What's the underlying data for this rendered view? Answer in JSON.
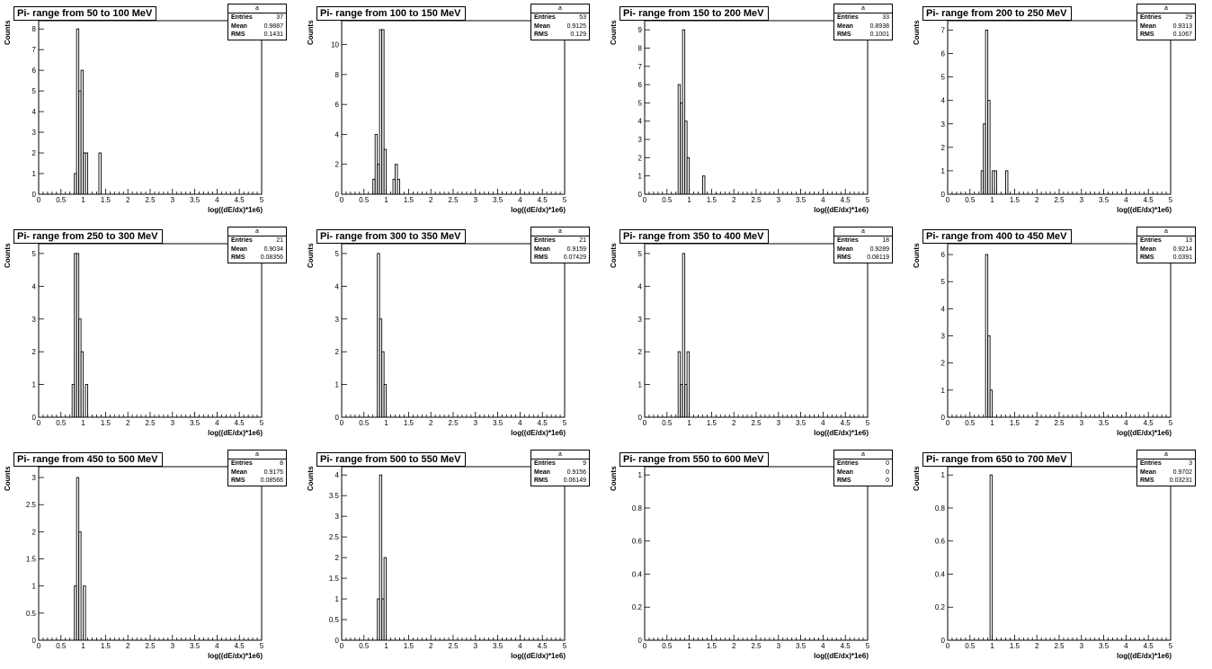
{
  "common": {
    "xlabel": "log((dE/dx)*1e6)",
    "ylabel": "Counts",
    "stats_name": "a",
    "stats_labels": [
      "Entries",
      "Mean",
      "RMS"
    ]
  },
  "chart_data": [
    {
      "type": "bar",
      "title": "Pi- range from 50 to 100 MeV",
      "xlim": [
        0,
        5
      ],
      "ylim": [
        0,
        8.4
      ],
      "yticks": [
        0,
        1,
        2,
        3,
        4,
        5,
        6,
        7,
        8
      ],
      "bin_width": 0.05,
      "bins": [
        [
          0.8,
          1
        ],
        [
          0.85,
          8
        ],
        [
          0.9,
          5
        ],
        [
          0.95,
          6
        ],
        [
          1.0,
          2
        ],
        [
          1.05,
          2
        ],
        [
          1.35,
          2
        ]
      ],
      "stats": {
        "entries": "37",
        "mean": "0.9887",
        "rms": "0.1431"
      }
    },
    {
      "type": "bar",
      "title": "Pi- range from 100 to 150 MeV",
      "xlim": [
        0,
        5
      ],
      "ylim": [
        0,
        11.6
      ],
      "yticks": [
        0,
        2,
        4,
        6,
        8,
        10
      ],
      "bin_width": 0.05,
      "bins": [
        [
          0.7,
          1
        ],
        [
          0.75,
          4
        ],
        [
          0.8,
          2
        ],
        [
          0.85,
          11
        ],
        [
          0.9,
          11
        ],
        [
          0.95,
          3
        ],
        [
          1.15,
          1
        ],
        [
          1.2,
          2
        ],
        [
          1.25,
          1
        ]
      ],
      "stats": {
        "entries": "53",
        "mean": "0.9125",
        "rms": "0.129"
      }
    },
    {
      "type": "bar",
      "title": "Pi- range from 150 to 200 MeV",
      "xlim": [
        0,
        5
      ],
      "ylim": [
        0,
        9.5
      ],
      "yticks": [
        0,
        1,
        2,
        3,
        4,
        5,
        6,
        7,
        8,
        9
      ],
      "bin_width": 0.05,
      "bins": [
        [
          0.75,
          6
        ],
        [
          0.8,
          5
        ],
        [
          0.85,
          9
        ],
        [
          0.9,
          4
        ],
        [
          0.95,
          2
        ],
        [
          1.3,
          1
        ]
      ],
      "stats": {
        "entries": "33",
        "mean": "0.8938",
        "rms": "0.1001"
      }
    },
    {
      "type": "bar",
      "title": "Pi- range from 200 to 250 MeV",
      "xlim": [
        0,
        5
      ],
      "ylim": [
        0,
        7.4
      ],
      "yticks": [
        0,
        1,
        2,
        3,
        4,
        5,
        6,
        7
      ],
      "bin_width": 0.05,
      "bins": [
        [
          0.75,
          1
        ],
        [
          0.8,
          3
        ],
        [
          0.85,
          7
        ],
        [
          0.9,
          4
        ],
        [
          1.0,
          1
        ],
        [
          1.05,
          1
        ],
        [
          1.3,
          1
        ]
      ],
      "stats": {
        "entries": "29",
        "mean": "0.9313",
        "rms": "0.1067"
      }
    },
    {
      "type": "bar",
      "title": "Pi- range from 250 to 300 MeV",
      "xlim": [
        0,
        5
      ],
      "ylim": [
        0,
        5.3
      ],
      "yticks": [
        0,
        1,
        2,
        3,
        4,
        5
      ],
      "bin_width": 0.05,
      "bins": [
        [
          0.75,
          1
        ],
        [
          0.8,
          5
        ],
        [
          0.85,
          5
        ],
        [
          0.9,
          3
        ],
        [
          0.95,
          2
        ],
        [
          1.05,
          1
        ]
      ],
      "stats": {
        "entries": "21",
        "mean": "0.9034",
        "rms": "0.08356"
      }
    },
    {
      "type": "bar",
      "title": "Pi- range from 300 to 350 MeV",
      "xlim": [
        0,
        5
      ],
      "ylim": [
        0,
        5.3
      ],
      "yticks": [
        0,
        1,
        2,
        3,
        4,
        5
      ],
      "bin_width": 0.05,
      "bins": [
        [
          0.8,
          5
        ],
        [
          0.85,
          3
        ],
        [
          0.9,
          2
        ],
        [
          0.95,
          1
        ]
      ],
      "stats": {
        "entries": "21",
        "mean": "0.9159",
        "rms": "0.07429"
      }
    },
    {
      "type": "bar",
      "title": "Pi- range from 350 to 400 MeV",
      "xlim": [
        0,
        5
      ],
      "ylim": [
        0,
        5.3
      ],
      "yticks": [
        0,
        1,
        2,
        3,
        4,
        5
      ],
      "bin_width": 0.05,
      "bins": [
        [
          0.75,
          2
        ],
        [
          0.8,
          1
        ],
        [
          0.85,
          5
        ],
        [
          0.9,
          1
        ],
        [
          0.95,
          2
        ]
      ],
      "stats": {
        "entries": "18",
        "mean": "0.9289",
        "rms": "0.08119"
      }
    },
    {
      "type": "bar",
      "title": "Pi- range from 400 to 450 MeV",
      "xlim": [
        0,
        5
      ],
      "ylim": [
        0,
        6.4
      ],
      "yticks": [
        0,
        1,
        2,
        3,
        4,
        5,
        6
      ],
      "bin_width": 0.05,
      "bins": [
        [
          0.85,
          6
        ],
        [
          0.9,
          3
        ],
        [
          0.95,
          1
        ]
      ],
      "stats": {
        "entries": "13",
        "mean": "0.9214",
        "rms": "0.0391"
      }
    },
    {
      "type": "bar",
      "title": "Pi- range from 450 to 500 MeV",
      "xlim": [
        0,
        5
      ],
      "ylim": [
        0,
        3.2
      ],
      "yticks": [
        0,
        0.5,
        1,
        1.5,
        2,
        2.5,
        3
      ],
      "bin_width": 0.05,
      "bins": [
        [
          0.8,
          1
        ],
        [
          0.85,
          3
        ],
        [
          0.9,
          2
        ],
        [
          1.0,
          1
        ]
      ],
      "stats": {
        "entries": "8",
        "mean": "0.9175",
        "rms": "0.08566"
      }
    },
    {
      "type": "bar",
      "title": "Pi- range from 500 to 550 MeV",
      "xlim": [
        0,
        5
      ],
      "ylim": [
        0,
        4.2
      ],
      "yticks": [
        0,
        0.5,
        1,
        1.5,
        2,
        2.5,
        3,
        3.5,
        4
      ],
      "bin_width": 0.05,
      "bins": [
        [
          0.8,
          1
        ],
        [
          0.85,
          4
        ],
        [
          0.9,
          1
        ],
        [
          0.95,
          2
        ]
      ],
      "stats": {
        "entries": "9",
        "mean": "0.9156",
        "rms": "0.06149"
      }
    },
    {
      "type": "bar",
      "title": "Pi- range from 550 to 600 MeV",
      "xlim": [
        0,
        5
      ],
      "ylim": [
        0,
        1.05
      ],
      "yticks": [
        0,
        0.2,
        0.4,
        0.6,
        0.8,
        1
      ],
      "bin_width": 0.05,
      "bins": [],
      "stats": {
        "entries": "0",
        "mean": "0",
        "rms": "0"
      }
    },
    {
      "type": "bar",
      "title": "Pi- range from 650 to 700 MeV",
      "xlim": [
        0,
        5
      ],
      "ylim": [
        0,
        1.05
      ],
      "yticks": [
        0,
        0.2,
        0.4,
        0.6,
        0.8,
        1
      ],
      "bin_width": 0.05,
      "bins": [
        [
          0.95,
          1
        ]
      ],
      "stats": {
        "entries": "3",
        "mean": "0.9702",
        "rms": "0.03231"
      }
    }
  ]
}
